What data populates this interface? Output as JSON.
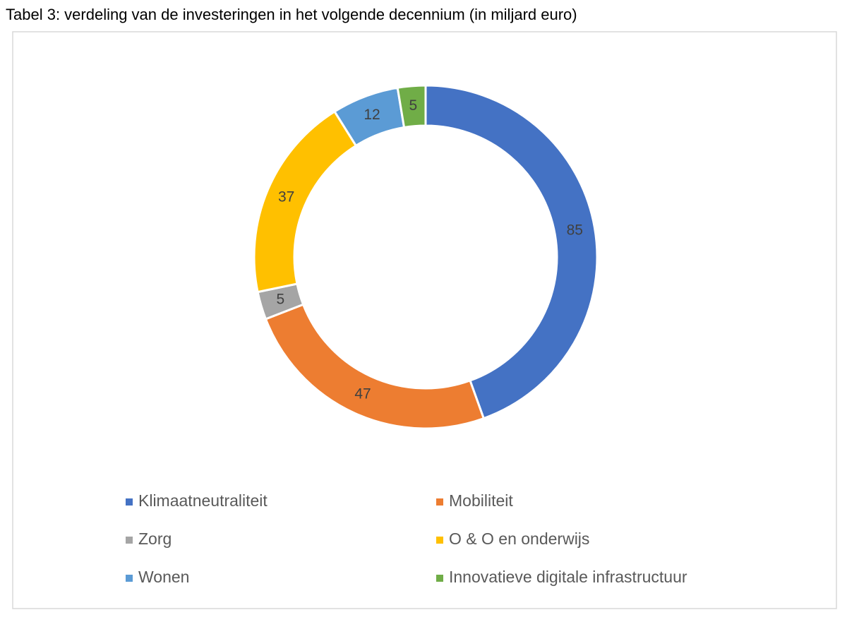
{
  "chart_data": {
    "type": "doughnut",
    "title": "Tabel 3: verdeling van de investeringen in het volgende decennium (in miljard euro)",
    "categories": [
      "Klimaatneutraliteit",
      "Mobiliteit",
      "Zorg",
      "O & O en onderwijs",
      "Wonen",
      "Innovatieve digitale infrastructuur"
    ],
    "values": [
      85,
      47,
      5,
      37,
      12,
      5
    ],
    "colors": [
      "#4472c4",
      "#ed7d31",
      "#a5a5a5",
      "#ffc000",
      "#5b9bd5",
      "#70ad47"
    ],
    "legend": "bottom"
  }
}
